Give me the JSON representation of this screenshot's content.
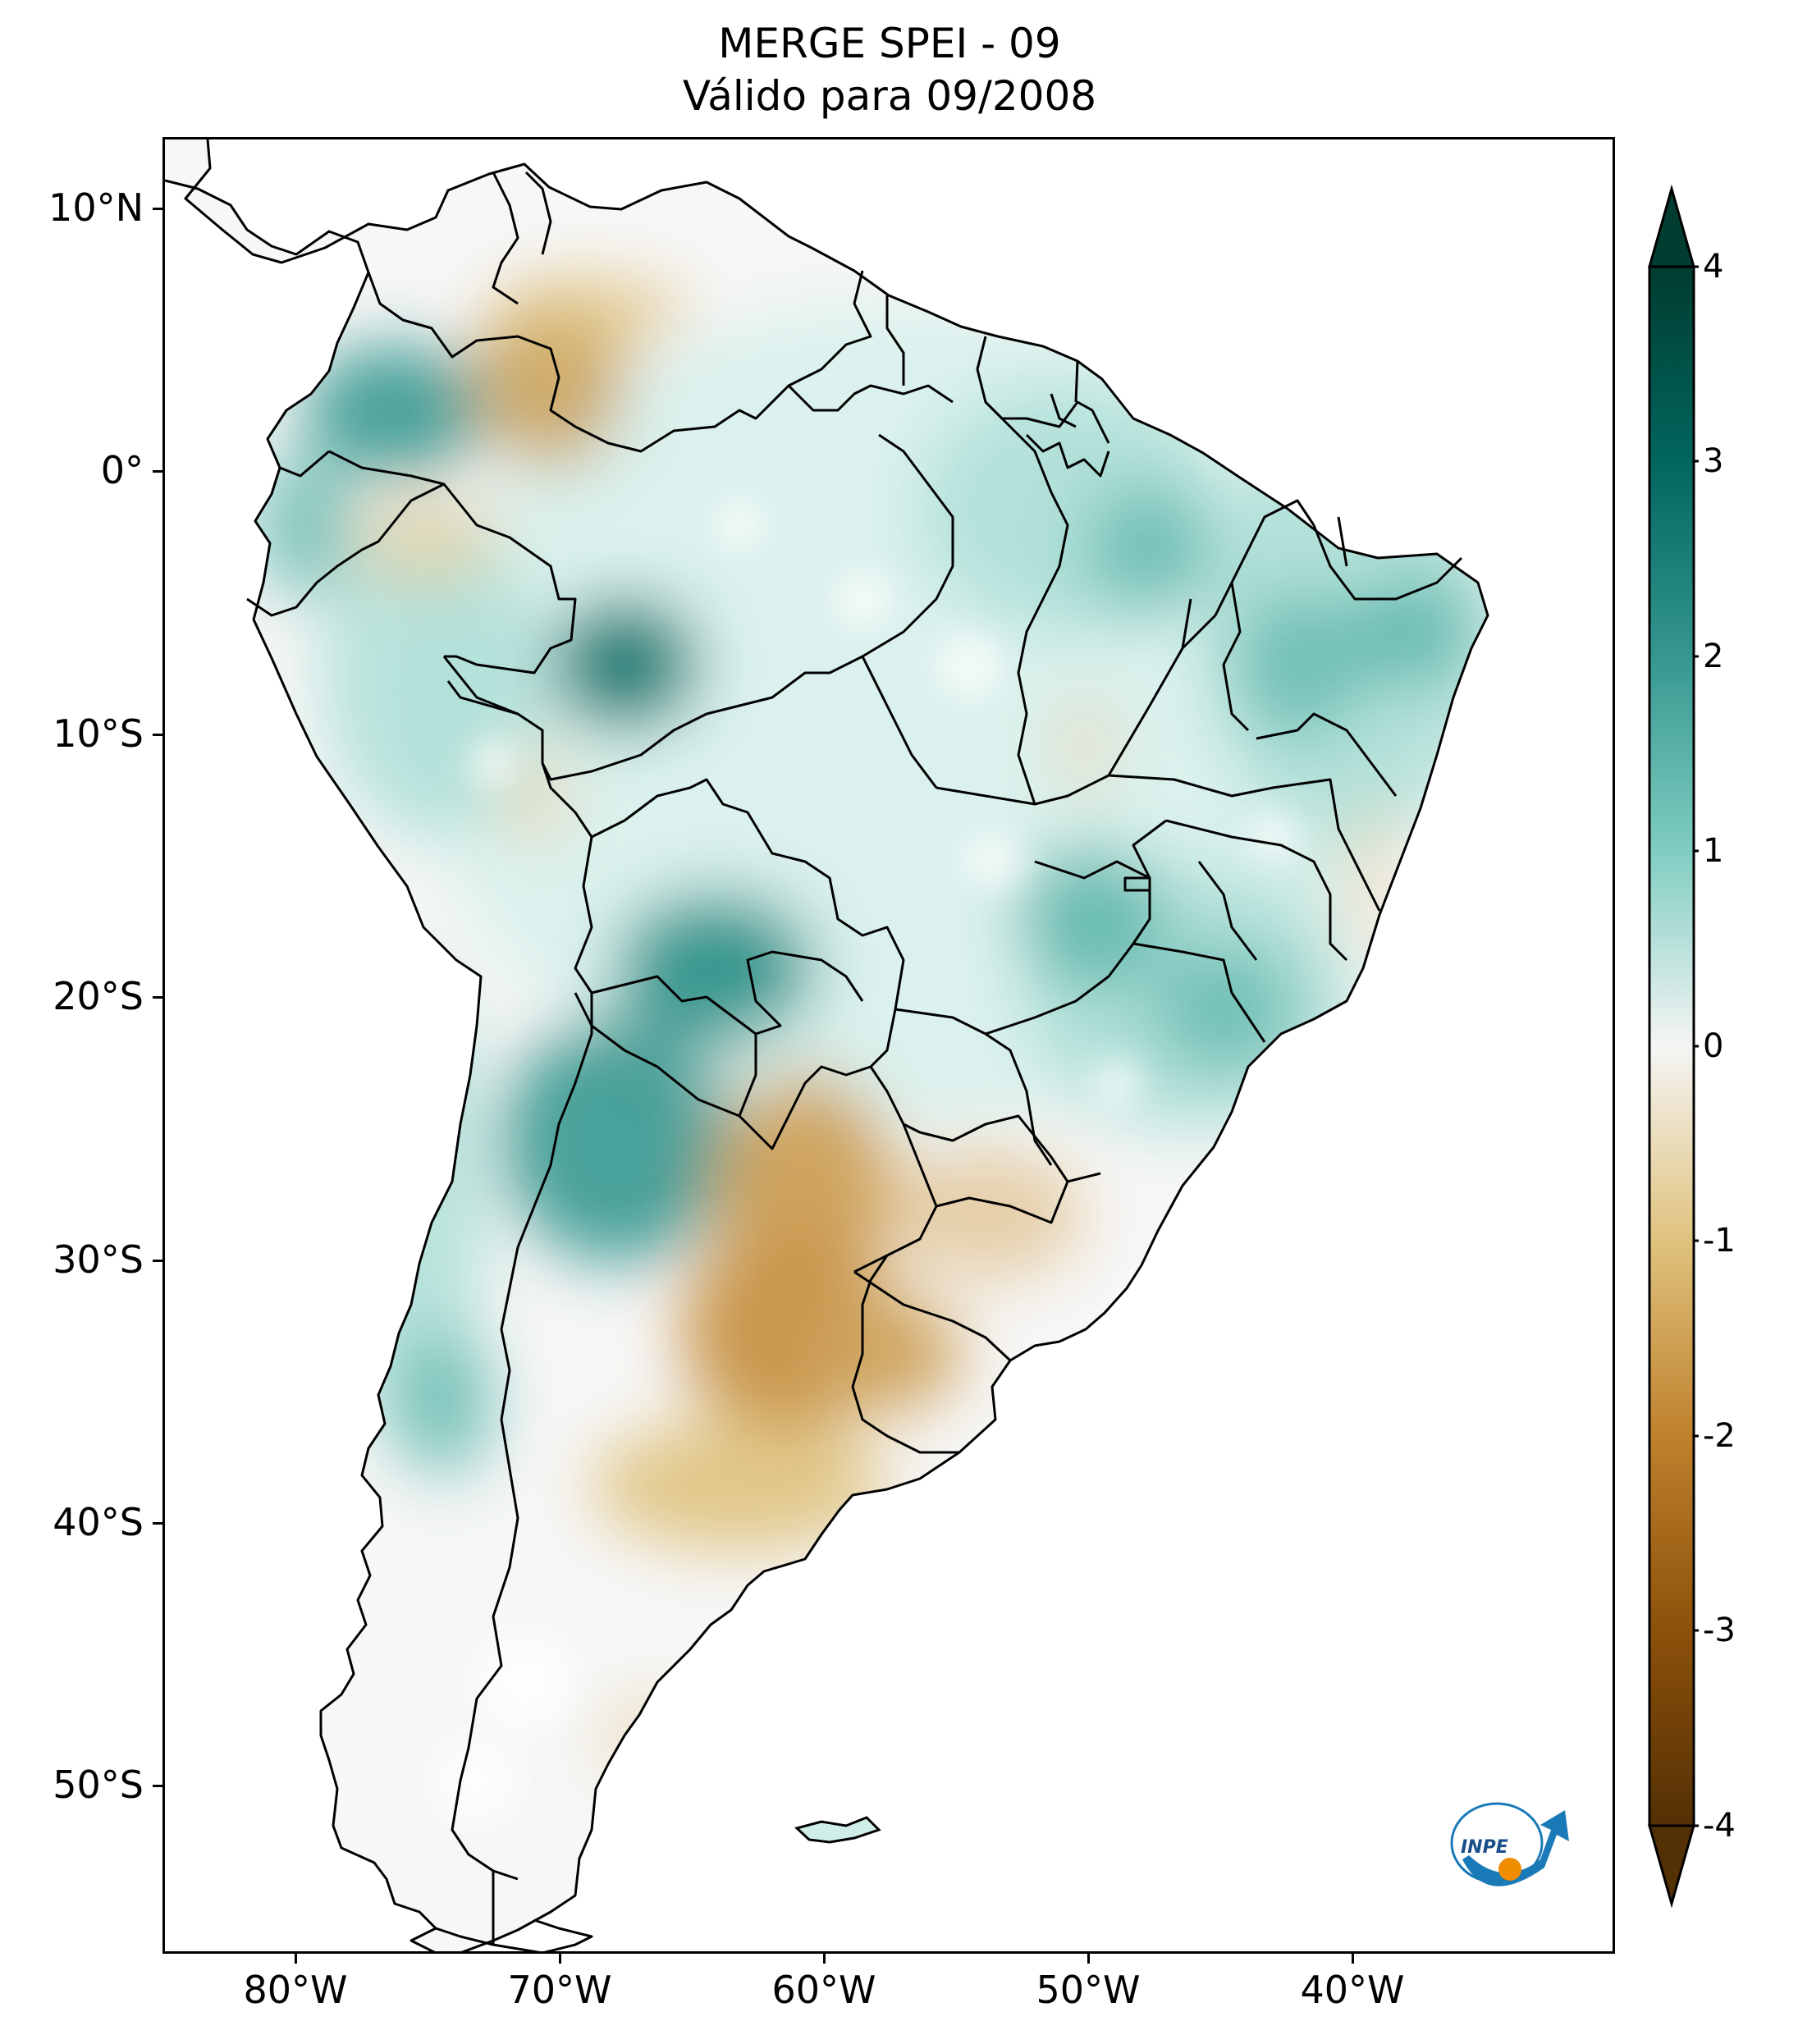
{
  "title": {
    "line1": "MERGE   SPEI - 09",
    "line2": "Válido para 09/2008"
  },
  "map": {
    "region": "South America",
    "lon_range": [
      -85,
      -30
    ],
    "lat_range": [
      -56,
      13
    ],
    "latitude_labels": [
      "10°N",
      "0°",
      "10°S",
      "20°S",
      "30°S",
      "40°S",
      "50°S"
    ],
    "longitude_labels": [
      "80°W",
      "70°W",
      "60°W",
      "50°W",
      "40°W"
    ]
  },
  "colorbar": {
    "tick_labels": [
      "4",
      "3",
      "2",
      "1",
      "0",
      "-1",
      "-2",
      "-3",
      "-4"
    ],
    "range": [
      -4,
      4
    ],
    "extend": "both",
    "colormap": "BrBG",
    "colors": {
      "wet_extreme": "#003c30",
      "wet_strong": "#01665e",
      "wet": "#35978f",
      "wet_light": "#80cdc1",
      "neutral": "#f5f5f5",
      "dry_light": "#dfc27d",
      "dry": "#bf812d",
      "dry_strong": "#8c510a",
      "dry_extreme": "#543005"
    }
  },
  "logo": {
    "text": "INPE",
    "icon": "inpe-logo-icon"
  }
}
